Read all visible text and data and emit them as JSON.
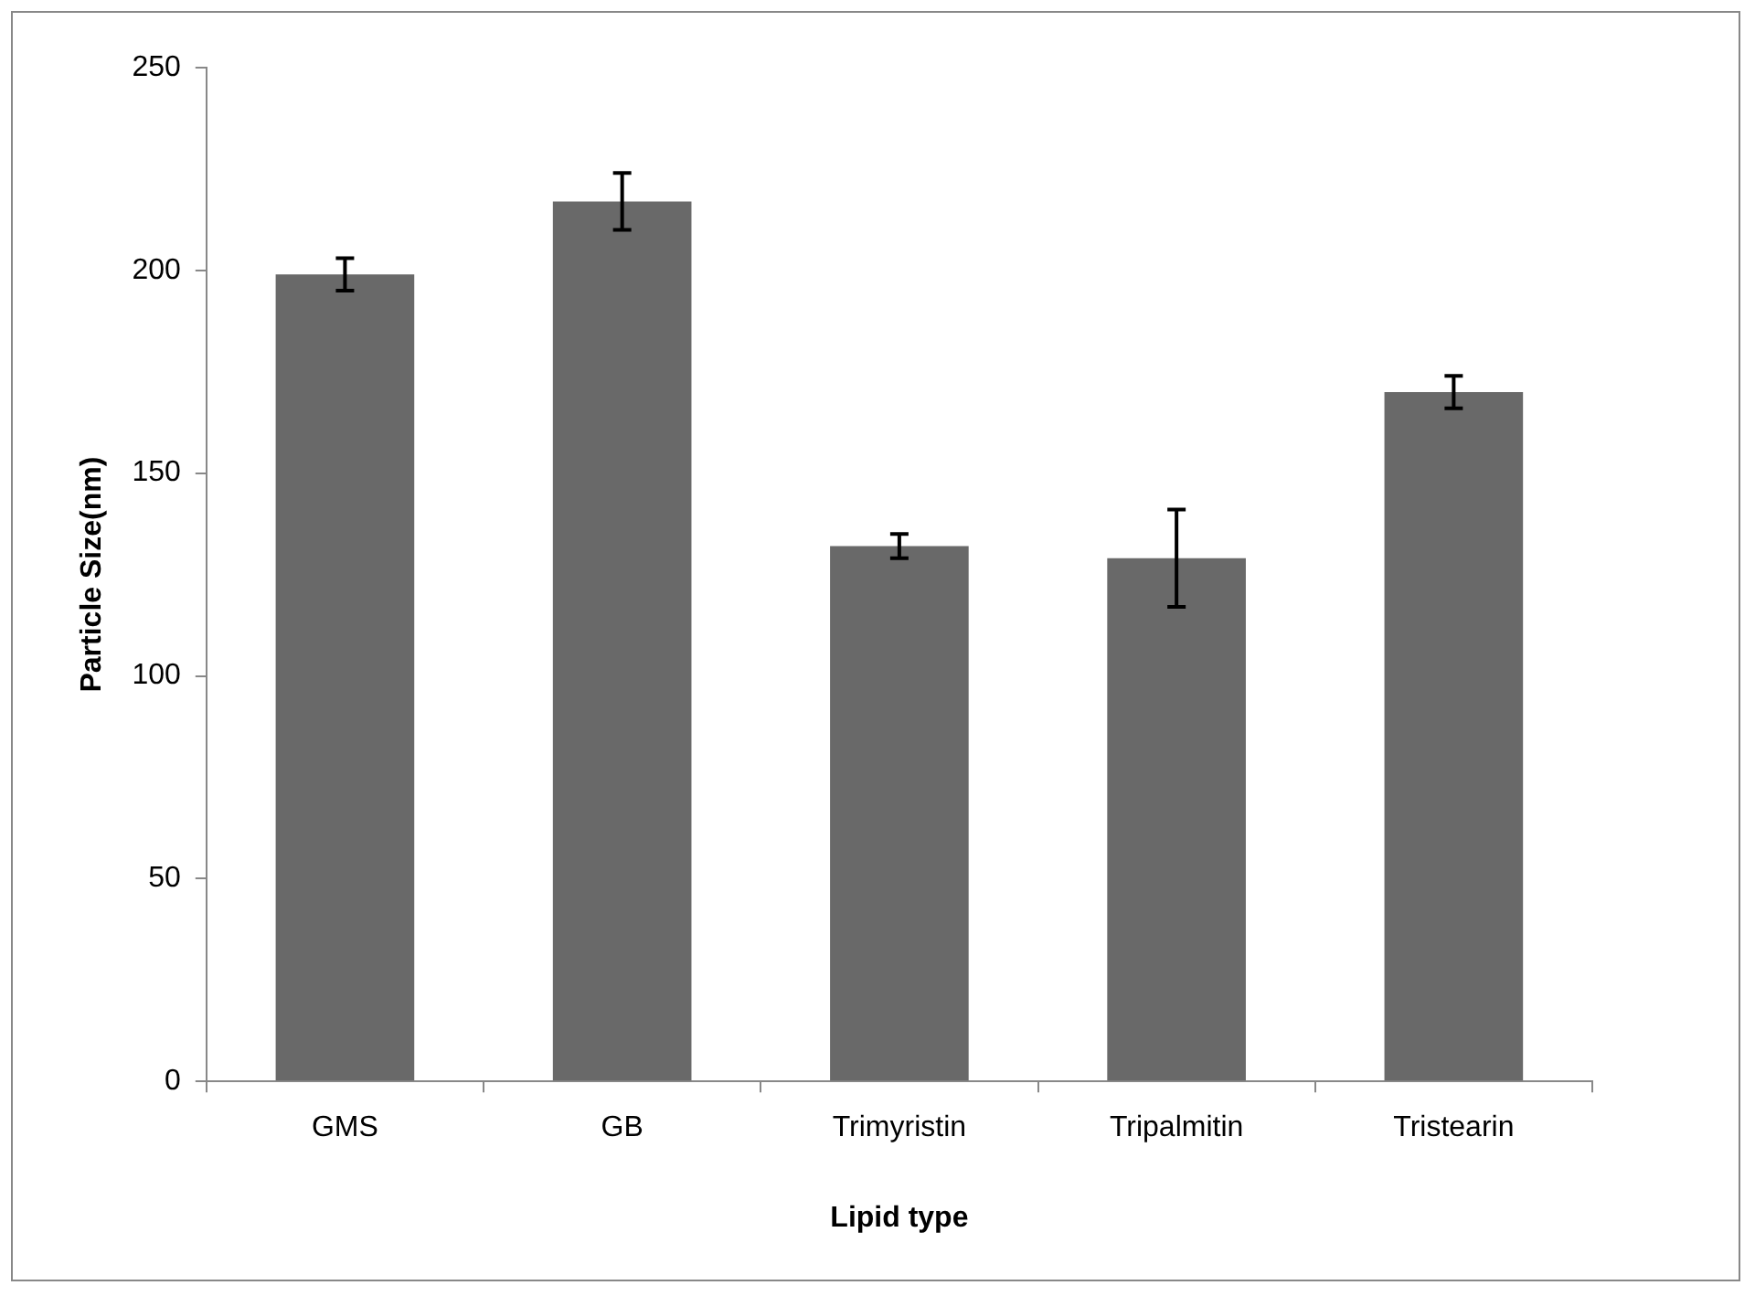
{
  "chart_data": {
    "type": "bar",
    "xlabel": "Lipid type",
    "ylabel": "Particle Size(nm)",
    "categories": [
      "GMS",
      "GB",
      "Trimyristin",
      "Tripalmitin",
      "Tristearin"
    ],
    "values": [
      199,
      217,
      132,
      129,
      170
    ],
    "errors": [
      4,
      7,
      3,
      12,
      4
    ],
    "color": "#696969",
    "ylim": [
      0,
      250
    ],
    "yticks": [
      0,
      50,
      100,
      150,
      200,
      250
    ],
    "grid": false,
    "legend": false
  }
}
